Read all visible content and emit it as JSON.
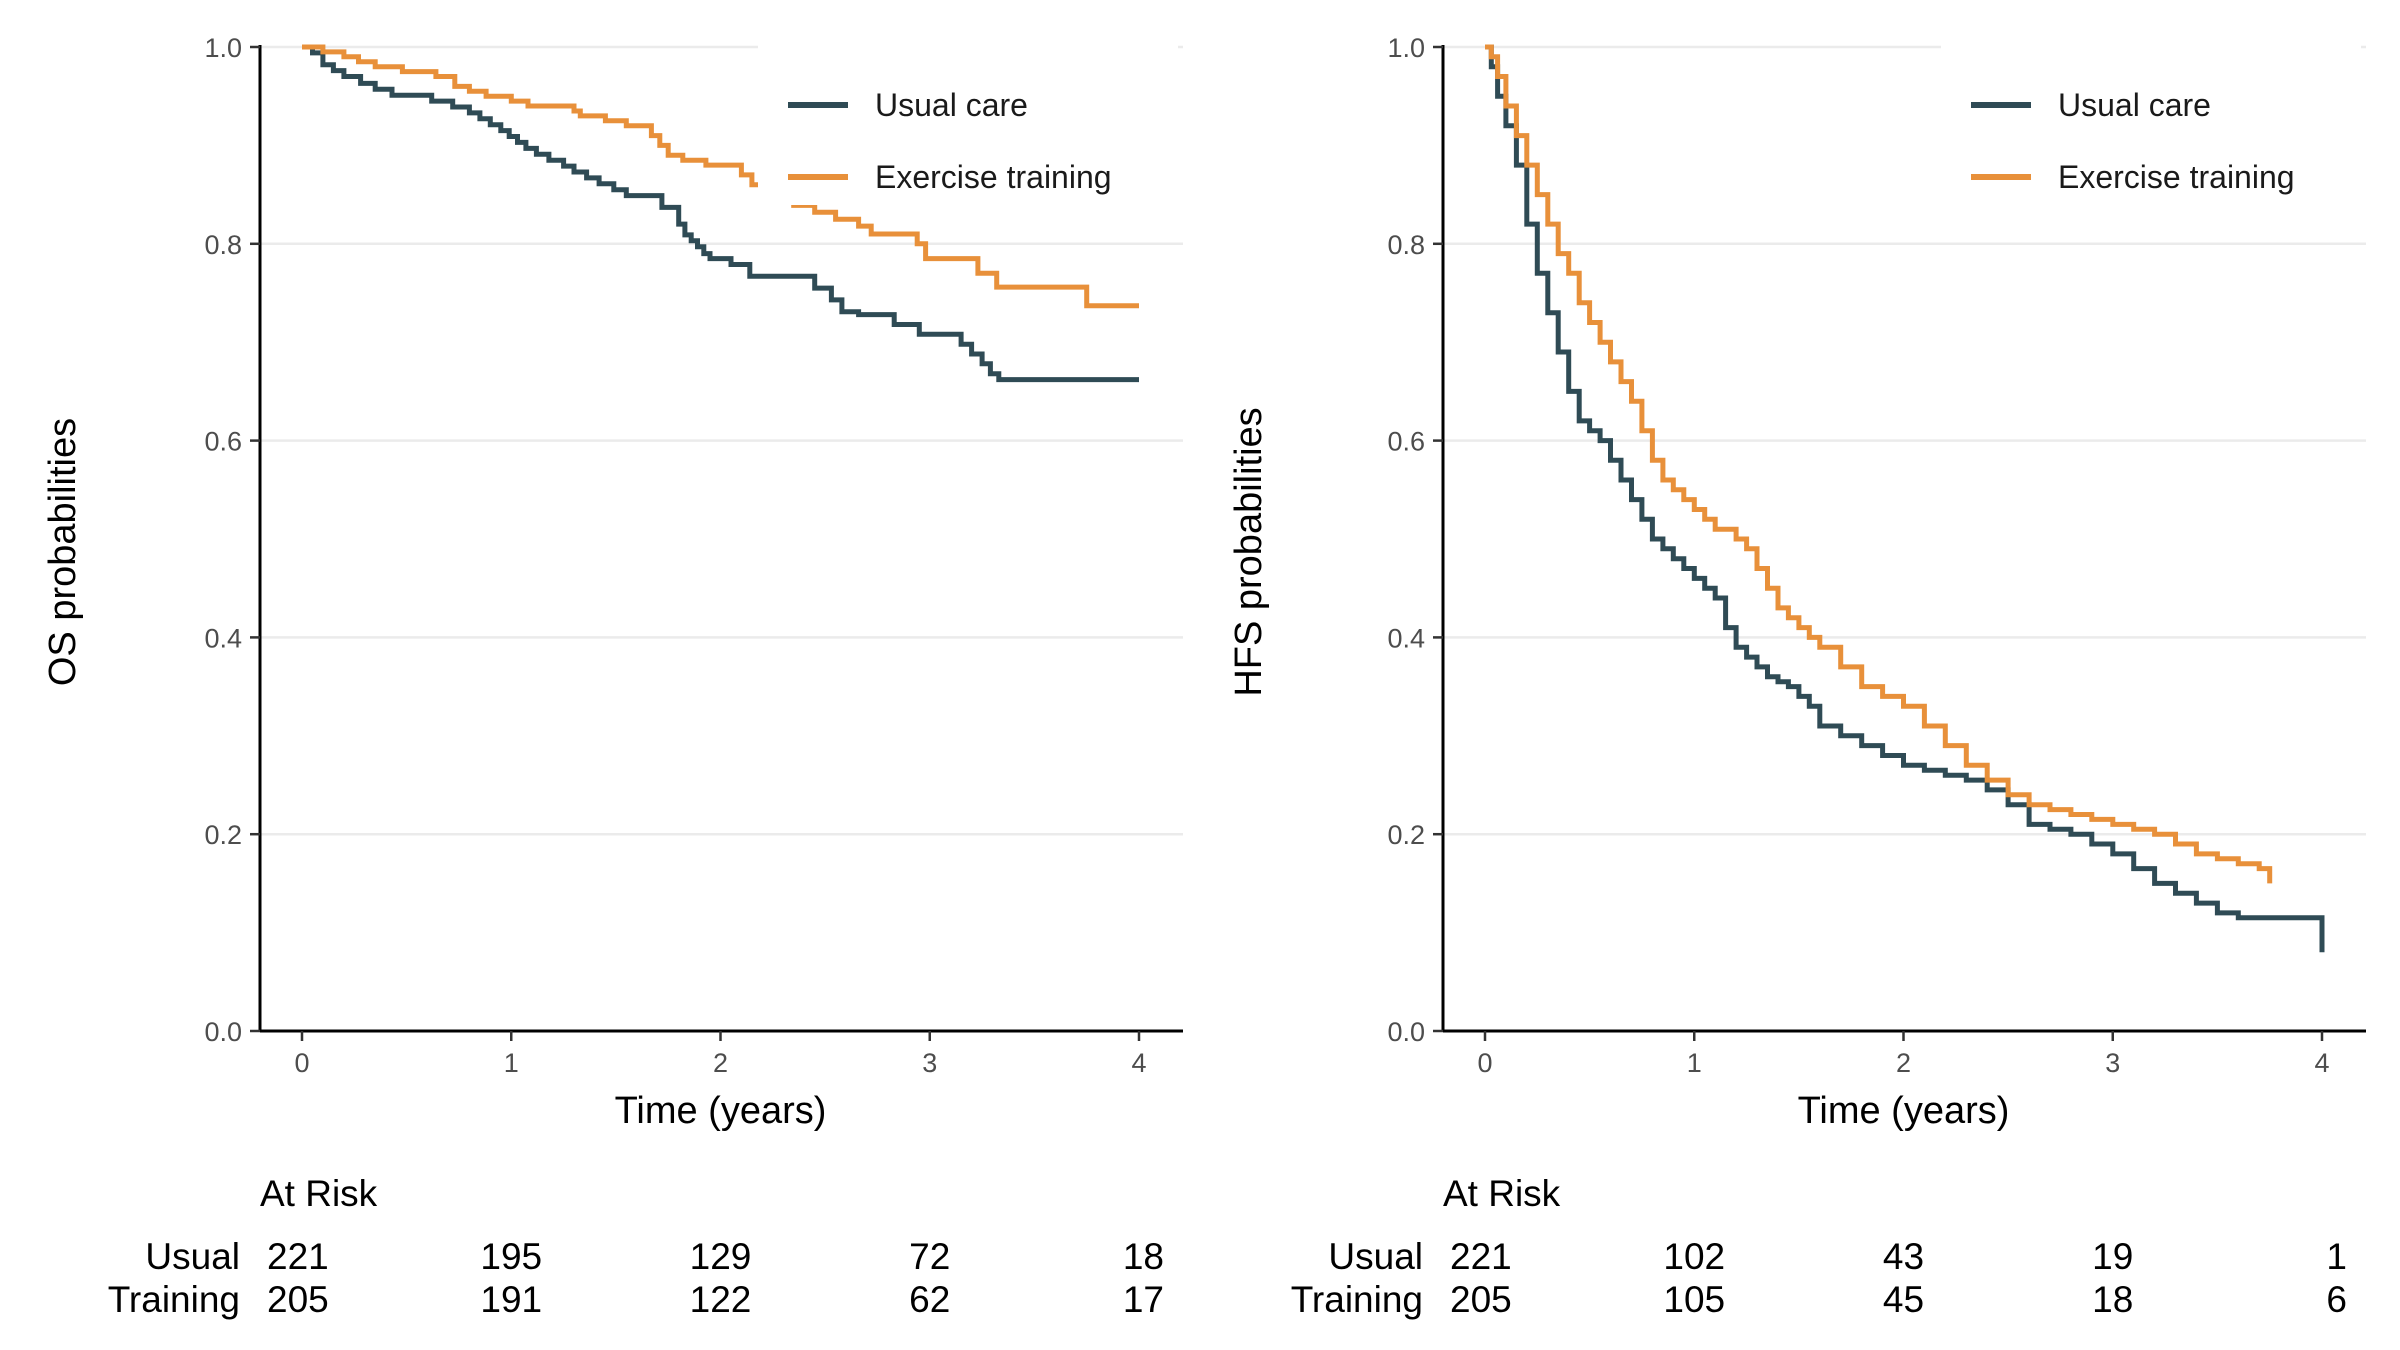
{
  "colors": {
    "usual": "#2F4B55",
    "exercise": "#E8903A"
  },
  "chart_data": [
    {
      "type": "line",
      "step": true,
      "ylabel": "OS probabilities",
      "xlabel": "Time (years)",
      "xlim": [
        0,
        4
      ],
      "ylim": [
        0,
        1
      ],
      "x_ticks": [
        "0",
        "1",
        "2",
        "3",
        "4"
      ],
      "y_ticks": [
        "0.0",
        "0.2",
        "0.4",
        "0.6",
        "0.8",
        "1.0"
      ],
      "grid": true,
      "legend_position": "top-right",
      "series": [
        {
          "name": "Usual care",
          "color_key": "usual",
          "x": [
            0,
            0.05,
            0.1,
            0.15,
            0.2,
            0.28,
            0.35,
            0.43,
            0.5,
            0.62,
            0.72,
            0.8,
            0.85,
            0.9,
            0.95,
            0.99,
            1.03,
            1.07,
            1.12,
            1.18,
            1.25,
            1.3,
            1.36,
            1.42,
            1.49,
            1.55,
            1.61,
            1.67,
            1.72,
            1.8,
            1.83,
            1.86,
            1.89,
            1.92,
            1.95,
            1.99,
            2.05,
            2.14,
            2.23,
            2.45,
            2.53,
            2.58,
            2.66,
            2.83,
            2.95,
            2.99,
            3.15,
            3.2,
            3.25,
            3.29,
            3.33,
            3.35,
            3.5,
            4.0
          ],
          "y": [
            1.0,
            0.994,
            0.982,
            0.976,
            0.97,
            0.963,
            0.957,
            0.951,
            0.951,
            0.945,
            0.939,
            0.933,
            0.927,
            0.921,
            0.915,
            0.909,
            0.903,
            0.897,
            0.891,
            0.885,
            0.879,
            0.873,
            0.867,
            0.861,
            0.855,
            0.849,
            0.849,
            0.849,
            0.837,
            0.82,
            0.809,
            0.803,
            0.797,
            0.79,
            0.785,
            0.785,
            0.779,
            0.767,
            0.767,
            0.755,
            0.743,
            0.731,
            0.728,
            0.718,
            0.708,
            0.708,
            0.698,
            0.688,
            0.678,
            0.668,
            0.662,
            0.662,
            0.662,
            0.662
          ]
        },
        {
          "name": "Exercise training",
          "color_key": "exercise",
          "x": [
            0,
            0.1,
            0.2,
            0.27,
            0.35,
            0.48,
            0.64,
            0.73,
            0.8,
            0.88,
            1.0,
            1.08,
            1.3,
            1.33,
            1.45,
            1.55,
            1.67,
            1.71,
            1.75,
            1.82,
            1.93,
            2.1,
            2.15,
            2.2,
            2.25,
            2.35,
            2.45,
            2.55,
            2.66,
            2.72,
            2.94,
            2.98,
            3.09,
            3.23,
            3.32,
            3.75,
            3.97,
            4.0
          ],
          "y": [
            1.0,
            0.995,
            0.99,
            0.985,
            0.98,
            0.975,
            0.97,
            0.96,
            0.955,
            0.95,
            0.945,
            0.94,
            0.935,
            0.93,
            0.925,
            0.92,
            0.91,
            0.9,
            0.89,
            0.885,
            0.88,
            0.87,
            0.86,
            0.853,
            0.846,
            0.839,
            0.832,
            0.825,
            0.818,
            0.81,
            0.8,
            0.785,
            0.785,
            0.77,
            0.756,
            0.737,
            0.737,
            0.737
          ]
        }
      ],
      "at_risk": {
        "title": "At Risk",
        "groups": [
          "Usual",
          "Training"
        ],
        "values": [
          [
            "221",
            "195",
            "129",
            "72",
            "18"
          ],
          [
            "205",
            "191",
            "122",
            "62",
            "17"
          ]
        ]
      }
    },
    {
      "type": "line",
      "step": true,
      "ylabel": "HFS probabilities",
      "xlabel": "Time (years)",
      "xlim": [
        0,
        4
      ],
      "ylim": [
        0,
        1
      ],
      "x_ticks": [
        "0",
        "1",
        "2",
        "3",
        "4"
      ],
      "y_ticks": [
        "0.0",
        "0.2",
        "0.4",
        "0.6",
        "0.8",
        "1.0"
      ],
      "grid": true,
      "legend_position": "top-right",
      "series": [
        {
          "name": "Usual care",
          "color_key": "usual",
          "x": [
            0,
            0.03,
            0.06,
            0.1,
            0.15,
            0.2,
            0.25,
            0.3,
            0.35,
            0.4,
            0.45,
            0.5,
            0.55,
            0.6,
            0.65,
            0.7,
            0.75,
            0.8,
            0.85,
            0.9,
            0.95,
            1.0,
            1.05,
            1.1,
            1.15,
            1.2,
            1.25,
            1.3,
            1.35,
            1.4,
            1.45,
            1.5,
            1.55,
            1.6,
            1.7,
            1.8,
            1.9,
            2.0,
            2.1,
            2.2,
            2.3,
            2.4,
            2.5,
            2.6,
            2.7,
            2.8,
            2.9,
            3.0,
            3.1,
            3.2,
            3.3,
            3.4,
            3.5,
            3.6,
            3.7,
            3.8,
            3.9,
            3.97,
            4.0
          ],
          "y": [
            1.0,
            0.98,
            0.95,
            0.92,
            0.88,
            0.82,
            0.77,
            0.73,
            0.69,
            0.65,
            0.62,
            0.61,
            0.6,
            0.58,
            0.56,
            0.54,
            0.52,
            0.5,
            0.49,
            0.48,
            0.47,
            0.46,
            0.45,
            0.44,
            0.41,
            0.39,
            0.38,
            0.37,
            0.36,
            0.355,
            0.35,
            0.34,
            0.33,
            0.31,
            0.3,
            0.29,
            0.28,
            0.27,
            0.265,
            0.26,
            0.255,
            0.245,
            0.23,
            0.21,
            0.205,
            0.2,
            0.19,
            0.18,
            0.165,
            0.15,
            0.14,
            0.13,
            0.12,
            0.115,
            0.115,
            0.115,
            0.115,
            0.115,
            0.08
          ]
        },
        {
          "name": "Exercise training",
          "color_key": "exercise",
          "x": [
            0,
            0.03,
            0.06,
            0.1,
            0.15,
            0.2,
            0.25,
            0.3,
            0.35,
            0.4,
            0.45,
            0.5,
            0.55,
            0.6,
            0.65,
            0.7,
            0.75,
            0.8,
            0.85,
            0.9,
            0.95,
            1.0,
            1.05,
            1.1,
            1.15,
            1.2,
            1.25,
            1.3,
            1.35,
            1.4,
            1.45,
            1.5,
            1.55,
            1.6,
            1.7,
            1.8,
            1.9,
            2.0,
            2.1,
            2.2,
            2.3,
            2.4,
            2.5,
            2.6,
            2.7,
            2.8,
            2.9,
            3.0,
            3.1,
            3.2,
            3.3,
            3.4,
            3.5,
            3.6,
            3.7,
            3.75
          ],
          "y": [
            1.0,
            0.99,
            0.97,
            0.94,
            0.91,
            0.88,
            0.85,
            0.82,
            0.79,
            0.77,
            0.74,
            0.72,
            0.7,
            0.68,
            0.66,
            0.64,
            0.61,
            0.58,
            0.56,
            0.55,
            0.54,
            0.53,
            0.52,
            0.51,
            0.51,
            0.5,
            0.49,
            0.47,
            0.45,
            0.43,
            0.42,
            0.41,
            0.4,
            0.39,
            0.37,
            0.35,
            0.34,
            0.33,
            0.31,
            0.29,
            0.27,
            0.255,
            0.24,
            0.23,
            0.225,
            0.22,
            0.215,
            0.21,
            0.205,
            0.2,
            0.19,
            0.18,
            0.175,
            0.17,
            0.165,
            0.15
          ]
        }
      ],
      "at_risk": {
        "title": "At Risk",
        "groups": [
          "Usual",
          "Training"
        ],
        "values": [
          [
            "221",
            "102",
            "43",
            "19",
            "1"
          ],
          [
            "205",
            "105",
            "45",
            "18",
            "6"
          ]
        ]
      }
    }
  ]
}
